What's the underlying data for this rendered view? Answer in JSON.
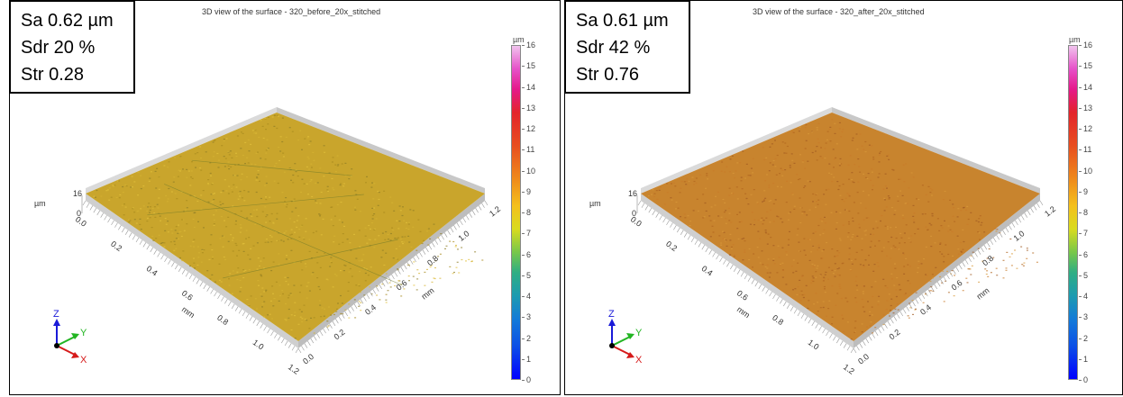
{
  "panels": [
    {
      "stats": {
        "sa": "Sa 0.62 µm",
        "sdr": "Sdr 20 %",
        "str": "Str 0.28"
      },
      "title": "3D view of the surface - 320_before_20x_stitched",
      "surface_color": "#c9a52c",
      "axis_labels": {
        "z_max": "16",
        "z_min": "0",
        "z_unit": "µm",
        "x_unit": "mm",
        "y_unit": "mm",
        "x_ticks": [
          "0.0",
          "0.2",
          "0.4",
          "0.6",
          "0.8",
          "1.0",
          "1.2"
        ],
        "y_ticks": [
          "0.0",
          "0.2",
          "0.4",
          "0.6",
          "0.8",
          "1.0",
          "1.2"
        ]
      },
      "triad": {
        "z": "Z",
        "y": "Y",
        "x": "X"
      },
      "colorbar": {
        "unit": "µm",
        "ticks": [
          "16",
          "15",
          "14",
          "13",
          "12",
          "11",
          "10",
          "9",
          "8",
          "7",
          "6",
          "5",
          "4",
          "3",
          "2",
          "1",
          "0"
        ]
      }
    },
    {
      "stats": {
        "sa": "Sa 0.61 µm",
        "sdr": "Sdr 42 %",
        "str": "Str 0.76"
      },
      "title": "3D view of the surface - 320_after_20x_stitched",
      "surface_color": "#c8842e",
      "axis_labels": {
        "z_max": "16",
        "z_min": "0",
        "z_unit": "µm",
        "x_unit": "mm",
        "y_unit": "mm",
        "x_ticks": [
          "0.0",
          "0.2",
          "0.4",
          "0.6",
          "0.8",
          "1.0",
          "1.2"
        ],
        "y_ticks": [
          "0.0",
          "0.2",
          "0.4",
          "0.6",
          "0.8",
          "1.0",
          "1.2"
        ]
      },
      "triad": {
        "z": "Z",
        "y": "Y",
        "x": "X"
      },
      "colorbar": {
        "unit": "µm",
        "ticks": [
          "16",
          "15",
          "14",
          "13",
          "12",
          "11",
          "10",
          "9",
          "8",
          "7",
          "6",
          "5",
          "4",
          "3",
          "2",
          "1",
          "0"
        ]
      }
    }
  ]
}
